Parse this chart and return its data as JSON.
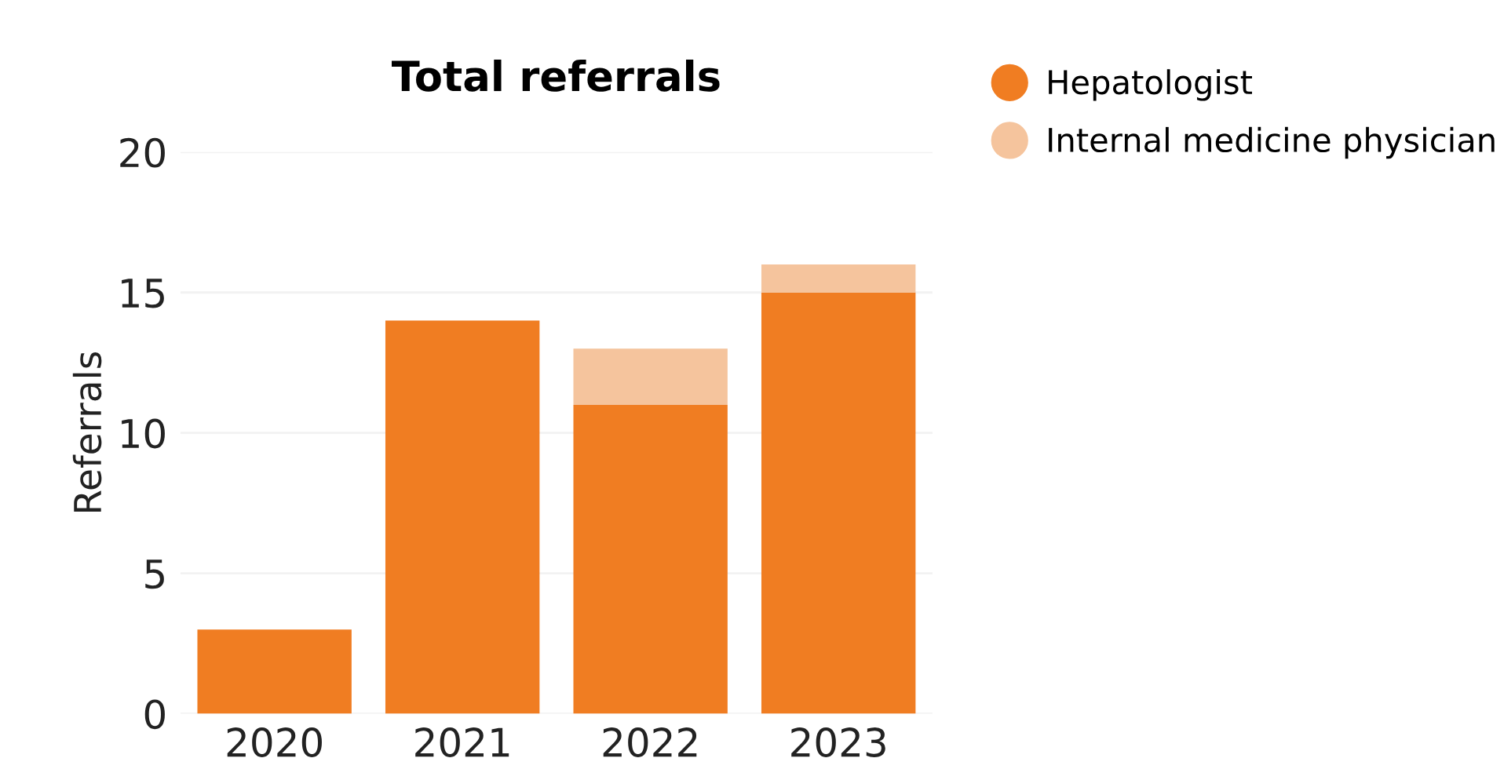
{
  "chart_data": {
    "type": "bar",
    "title": "Total referrals",
    "ylabel": "Referrals",
    "categories": [
      "2020",
      "2021",
      "2022",
      "2023"
    ],
    "series": [
      {
        "name": "Hepatologist",
        "color": "#f07d22",
        "values": [
          3,
          14,
          11,
          15
        ]
      },
      {
        "name": "Internal medicine physician",
        "color": "#f5c49d",
        "values": [
          0,
          0,
          2,
          1
        ]
      }
    ],
    "stacked": true,
    "ylim": [
      0,
      20
    ],
    "yticks": [
      0,
      5,
      10,
      15,
      20
    ],
    "grid": "y",
    "legend": "top right"
  }
}
